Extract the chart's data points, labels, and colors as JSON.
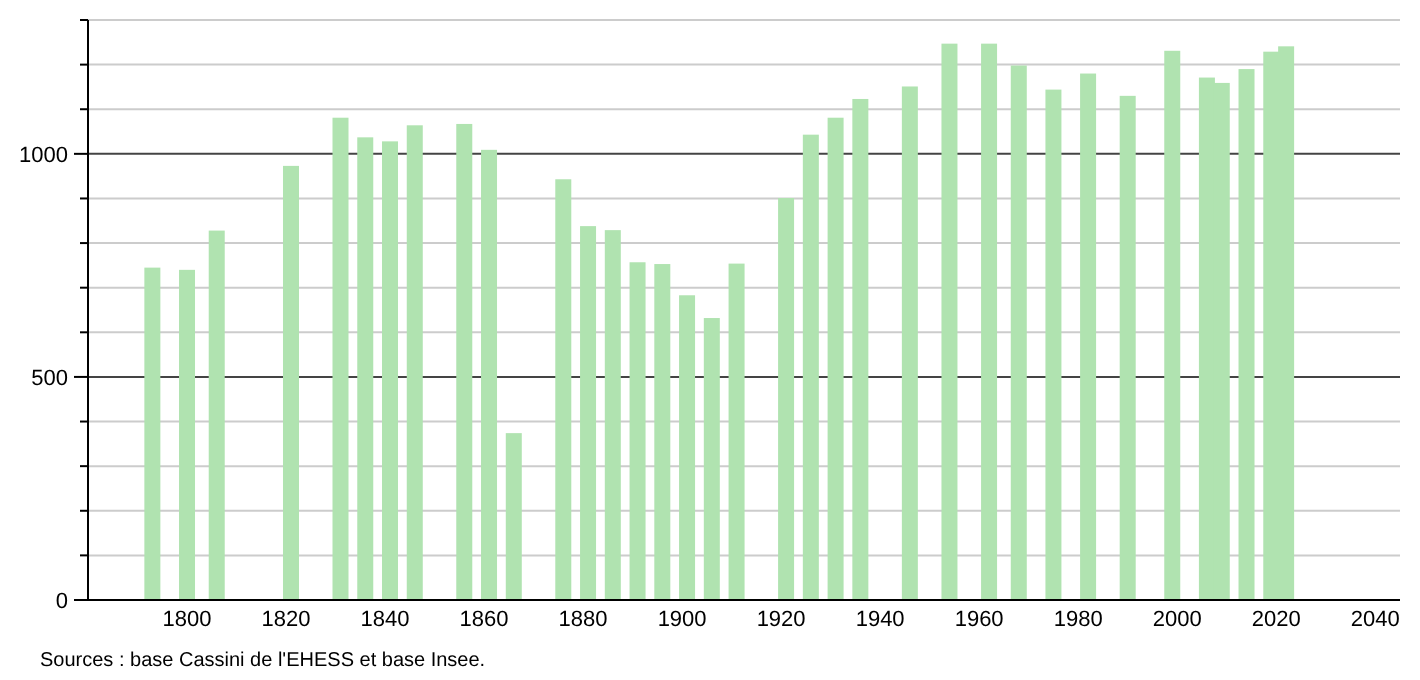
{
  "chart_data": {
    "type": "bar",
    "x": [
      1793,
      1800,
      1806,
      1821,
      1831,
      1836,
      1841,
      1846,
      1856,
      1861,
      1866,
      1876,
      1881,
      1886,
      1891,
      1896,
      1901,
      1906,
      1911,
      1921,
      1926,
      1931,
      1936,
      1946,
      1954,
      1962,
      1968,
      1975,
      1982,
      1990,
      1999,
      2006,
      2009,
      2014,
      2019,
      2022
    ],
    "values": [
      745,
      740,
      828,
      973,
      1081,
      1037,
      1028,
      1064,
      1067,
      1009,
      374,
      943,
      838,
      829,
      757,
      753,
      683,
      632,
      754,
      901,
      1043,
      1081,
      1123,
      1151,
      1247,
      1247,
      1198,
      1144,
      1180,
      1130,
      1231,
      1171,
      1159,
      1190,
      1229,
      1241
    ],
    "color": "#b0e3b0",
    "xlim": [
      1780,
      2045
    ],
    "xticks": [
      1800,
      1820,
      1840,
      1860,
      1880,
      1900,
      1920,
      1940,
      1960,
      1980,
      2000,
      2020,
      2040
    ],
    "ylim": [
      0,
      1300
    ],
    "yticks": [
      0,
      {
        "value": 100,
        "label": null
      },
      {
        "value": 200,
        "label": null
      },
      {
        "value": 300,
        "label": null
      },
      {
        "value": 400,
        "label": null
      },
      500,
      {
        "value": 600,
        "label": null
      },
      {
        "value": 700,
        "label": null
      },
      {
        "value": 800,
        "label": null
      },
      {
        "value": 900,
        "label": null
      },
      1000,
      {
        "value": 1100,
        "label": null
      },
      {
        "value": 1200,
        "label": null
      },
      {
        "value": 1300,
        "label": null
      }
    ],
    "grid": "y",
    "annotations": [
      "Sources : base Cassini de l'EHESS et base Insee."
    ]
  }
}
